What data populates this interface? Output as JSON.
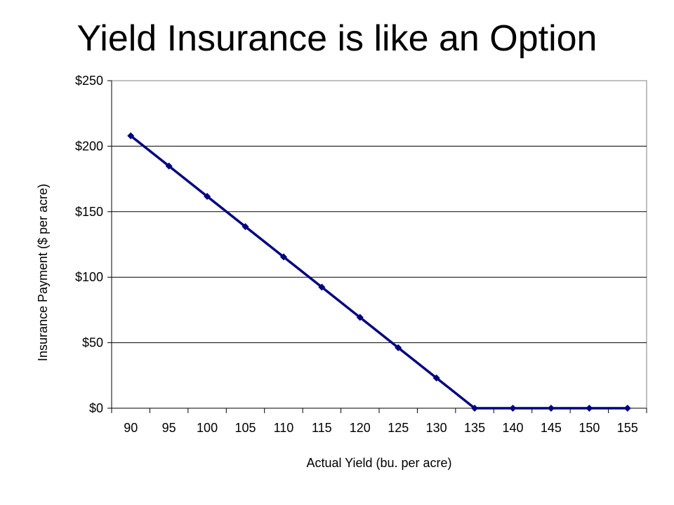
{
  "slide": {
    "title": "Yield Insurance is like an Option"
  },
  "chart_data": {
    "type": "line",
    "categories": [
      "90",
      "95",
      "100",
      "105",
      "110",
      "115",
      "120",
      "125",
      "130",
      "135",
      "140",
      "145",
      "150",
      "155"
    ],
    "series": [
      {
        "values": [
          207.9,
          184.8,
          161.7,
          138.6,
          115.5,
          92.4,
          69.3,
          46.2,
          23.1,
          0,
          0,
          0,
          0,
          0
        ],
        "color": "#000080",
        "marker": "diamond"
      }
    ],
    "xlabel": "Actual Yield (bu. per acre)",
    "ylabel": "Insurance Payment ($ per acre)",
    "ylim": [
      0,
      250
    ],
    "yticks": [
      0,
      50,
      100,
      150,
      200,
      250
    ],
    "ytick_labels": [
      "$0",
      "$50",
      "$100",
      "$150",
      "$200",
      "$250"
    ],
    "grid": "horizontal",
    "legend": "none"
  }
}
